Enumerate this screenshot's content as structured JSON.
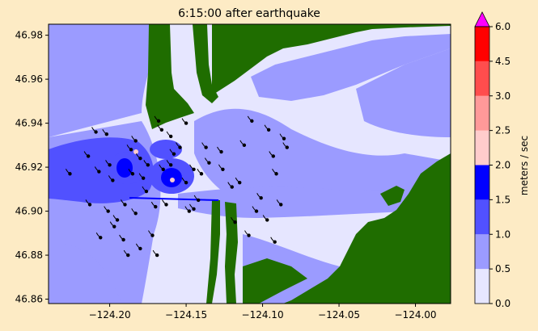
{
  "chart_data": {
    "type": "heatmap",
    "title": "6:15:00 after earthquake",
    "xlabel": "",
    "ylabel": "",
    "xlim": [
      -124.24,
      -123.977
    ],
    "ylim": [
      46.858,
      46.985
    ],
    "x_ticks": [
      {
        "value": -124.2,
        "label": "−124.20"
      },
      {
        "value": -124.15,
        "label": "−124.15"
      },
      {
        "value": -124.1,
        "label": "−124.10"
      },
      {
        "value": -124.05,
        "label": "−124.05"
      },
      {
        "value": -124.0,
        "label": "−124.00"
      }
    ],
    "y_ticks": [
      {
        "value": 46.86,
        "label": "46.86"
      },
      {
        "value": 46.88,
        "label": "46.88"
      },
      {
        "value": 46.9,
        "label": "46.90"
      },
      {
        "value": 46.92,
        "label": "46.92"
      },
      {
        "value": 46.94,
        "label": "46.94"
      },
      {
        "value": 46.96,
        "label": "46.96"
      },
      {
        "value": 46.98,
        "label": "46.98"
      }
    ],
    "colorbar": {
      "label": "meters / sec",
      "levels": [
        0.0,
        0.5,
        1.0,
        1.5,
        2.0,
        2.5,
        3.0,
        4.5,
        6.0
      ],
      "tick_labels": [
        "0.0",
        "0.5",
        "1.0",
        "1.5",
        "2.0",
        "2.5",
        "3.0",
        "4.5",
        "6.0"
      ],
      "colors": [
        "#e6e6ff",
        "#9b9bff",
        "#5151ff",
        "#0000ff",
        "#ffcccc",
        "#ff9999",
        "#ff4d4d",
        "#ff0000"
      ],
      "extend_max_color": "#ff00ff"
    },
    "colors": {
      "land": "#1f6d00",
      "water_light": "#e6e6ff",
      "water_mid": "#9b9bff",
      "water_strong": "#5151ff",
      "water_fast": "#0000ff",
      "marker": "#000000"
    },
    "velocity_markers": [
      [
        -124.226,
        46.917
      ],
      [
        -124.214,
        46.925
      ],
      [
        -124.207,
        46.918
      ],
      [
        -124.2,
        46.921
      ],
      [
        -124.209,
        46.936
      ],
      [
        -124.213,
        46.903
      ],
      [
        -124.201,
        46.9
      ],
      [
        -124.195,
        46.896
      ],
      [
        -124.19,
        46.903
      ],
      [
        -124.206,
        46.888
      ],
      [
        -124.197,
        46.893
      ],
      [
        -124.191,
        46.887
      ],
      [
        -124.188,
        46.88
      ],
      [
        -124.183,
        46.899
      ],
      [
        -124.18,
        46.883
      ],
      [
        -124.183,
        46.932
      ],
      [
        -124.18,
        46.924
      ],
      [
        -124.178,
        46.915
      ],
      [
        -124.176,
        46.909
      ],
      [
        -124.17,
        46.902
      ],
      [
        -124.163,
        46.903
      ],
      [
        -124.172,
        46.889
      ],
      [
        -124.169,
        46.88
      ],
      [
        -124.165,
        46.919
      ],
      [
        -124.158,
        46.926
      ],
      [
        -124.154,
        46.929
      ],
      [
        -124.166,
        46.937
      ],
      [
        -124.16,
        46.934
      ],
      [
        -124.15,
        46.913
      ],
      [
        -124.142,
        46.905
      ],
      [
        -124.145,
        46.901
      ],
      [
        -124.14,
        46.917
      ],
      [
        -124.148,
        46.9
      ],
      [
        -124.135,
        46.922
      ],
      [
        -124.137,
        46.929
      ],
      [
        -124.127,
        46.927
      ],
      [
        -124.12,
        46.911
      ],
      [
        -124.115,
        46.913
      ],
      [
        -124.112,
        46.93
      ],
      [
        -124.107,
        46.941
      ],
      [
        -124.096,
        46.937
      ],
      [
        -124.093,
        46.925
      ],
      [
        -124.091,
        46.917
      ],
      [
        -124.086,
        46.933
      ],
      [
        -124.084,
        46.929
      ],
      [
        -124.101,
        46.906
      ],
      [
        -124.104,
        46.9
      ],
      [
        -124.097,
        46.896
      ],
      [
        -124.088,
        46.903
      ],
      [
        -124.092,
        46.886
      ],
      [
        -124.109,
        46.889
      ],
      [
        -124.118,
        46.895
      ],
      [
        -124.126,
        46.919
      ],
      [
        -124.15,
        46.94
      ],
      [
        -124.16,
        46.921
      ],
      [
        -124.175,
        46.921
      ],
      [
        -124.186,
        46.928
      ],
      [
        -124.198,
        46.914
      ],
      [
        -124.202,
        46.935
      ],
      [
        -124.185,
        46.917
      ],
      [
        -124.168,
        46.941
      ],
      [
        -124.145,
        46.919
      ]
    ]
  }
}
